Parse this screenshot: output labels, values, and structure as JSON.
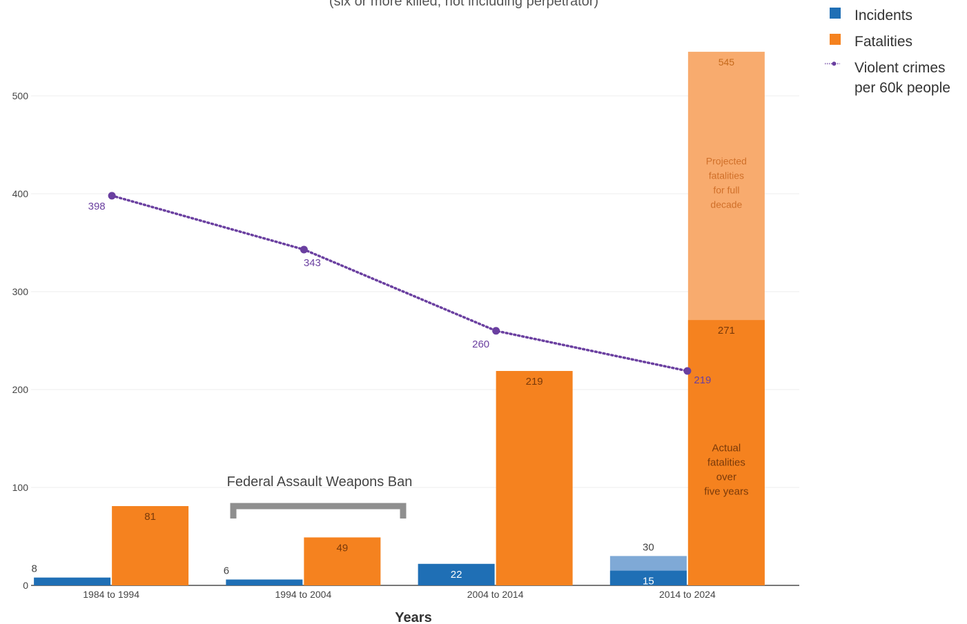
{
  "chart_data": {
    "type": "bar",
    "subtitle": "(six or more killed, not including perpetrator)",
    "xlabel": "Years",
    "ylabel": "",
    "ylim": [
      0,
      560
    ],
    "yticks": [
      0,
      100,
      200,
      300,
      400,
      500
    ],
    "categories": [
      "1984 to 1994",
      "1994 to 2004",
      "2004 to 2014",
      "2014 to 2024"
    ],
    "series": [
      {
        "name": "Incidents",
        "values": [
          8,
          6,
          22,
          15
        ],
        "labels": [
          "8",
          "6",
          "22",
          "15"
        ]
      },
      {
        "name": "Fatalities",
        "values": [
          81,
          49,
          219,
          271
        ],
        "labels": [
          "81",
          "49",
          "219",
          "271"
        ]
      },
      {
        "name": "Violent crimes per 60k people",
        "type": "line",
        "values": [
          398,
          343,
          260,
          219
        ],
        "labels": [
          "398",
          "343",
          "260",
          "219"
        ]
      }
    ],
    "projected": {
      "incidents": {
        "value": 30,
        "label": "30"
      },
      "fatalities": {
        "value": 545,
        "label": "545",
        "text": "Projected fatalities for full decade"
      },
      "actual_text": "Actual fatalities over five years"
    },
    "annotation": {
      "text": "Federal Assault Weapons Ban",
      "from": "1994 to 2004"
    },
    "colors": {
      "incidents": "#1f6fb5",
      "incidents_projected": "#7fa9d6",
      "fatalities": "#f5821f",
      "fatalities_projected": "#f8ab6e",
      "line": "#6a3fa0",
      "bracket": "#8f8f8f",
      "grid": "#ececec"
    },
    "legend": {
      "position": "top-right",
      "items": [
        {
          "label": "Incidents",
          "color": "#1f6fb5",
          "shape": "square"
        },
        {
          "label": "Fatalities",
          "color": "#f5821f",
          "shape": "square"
        },
        {
          "label": "Violent crimes per 60k people",
          "color": "#6a3fa0",
          "shape": "dotted-line"
        }
      ]
    }
  }
}
